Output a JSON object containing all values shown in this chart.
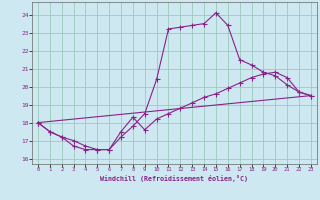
{
  "xlabel": "Windchill (Refroidissement éolien,°C)",
  "bg_color": "#cde8f0",
  "line_color": "#882288",
  "grid_color": "#99ccbb",
  "xlim": [
    -0.5,
    23.5
  ],
  "ylim": [
    15.7,
    24.7
  ],
  "yticks": [
    16,
    17,
    18,
    19,
    20,
    21,
    22,
    23,
    24
  ],
  "xticks": [
    0,
    1,
    2,
    3,
    4,
    5,
    6,
    7,
    8,
    9,
    10,
    11,
    12,
    13,
    14,
    15,
    16,
    17,
    18,
    19,
    20,
    21,
    22,
    23
  ],
  "curve1_x": [
    0,
    1,
    2,
    3,
    4,
    5,
    6,
    7,
    8,
    9,
    10,
    11,
    12,
    13,
    14,
    15,
    16,
    17,
    18,
    19,
    20,
    21,
    22,
    23
  ],
  "curve1_y": [
    18.0,
    17.5,
    17.2,
    16.7,
    16.5,
    16.5,
    16.5,
    17.2,
    17.8,
    18.5,
    20.4,
    23.2,
    23.3,
    23.4,
    23.5,
    24.1,
    23.4,
    21.5,
    21.2,
    20.8,
    20.6,
    20.1,
    19.7,
    19.5
  ],
  "curve2_x": [
    0,
    1,
    2,
    3,
    4,
    5,
    6,
    7,
    8,
    9,
    10,
    11,
    12,
    13,
    14,
    15,
    16,
    17,
    18,
    19,
    20,
    21,
    22,
    23
  ],
  "curve2_y": [
    18.0,
    17.5,
    17.2,
    17.0,
    16.7,
    16.5,
    16.5,
    17.5,
    18.3,
    17.6,
    18.2,
    18.5,
    18.8,
    19.1,
    19.4,
    19.6,
    19.9,
    20.2,
    20.5,
    20.7,
    20.8,
    20.5,
    19.7,
    19.5
  ],
  "curve3_x": [
    0,
    23
  ],
  "curve3_y": [
    18.0,
    19.5
  ]
}
